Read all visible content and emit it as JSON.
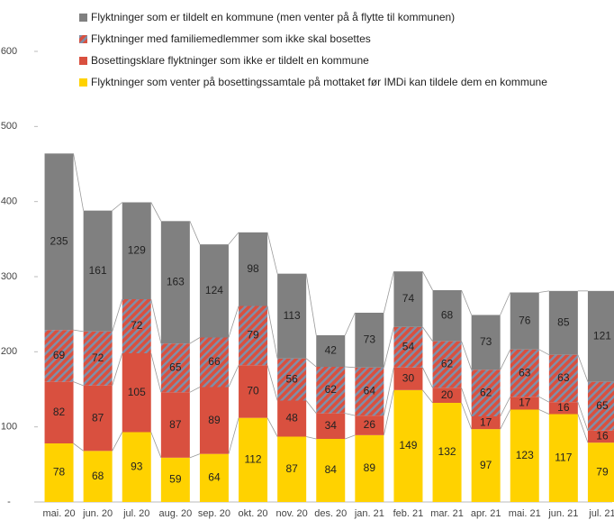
{
  "chart_data": {
    "type": "stacked_bar",
    "categories": [
      "mai. 20",
      "jun. 20",
      "jul. 20",
      "aug. 20",
      "sep. 20",
      "okt. 20",
      "nov. 20",
      "des. 20",
      "jan. 21",
      "feb. 21",
      "mar. 21",
      "apr. 21",
      "mai. 21",
      "jun. 21",
      "jul. 21"
    ],
    "series": [
      {
        "name": "Flyktninger som venter på bosettingssamtale på mottaket før IMDi kan tildele dem en kommune",
        "color": "#ffd200",
        "values": [
          78,
          68,
          93,
          59,
          64,
          112,
          87,
          84,
          89,
          149,
          132,
          97,
          123,
          117,
          79
        ]
      },
      {
        "name": "Bosettingsklare flyktninger som ikke er tildelt en kommune",
        "color": "#d9503f",
        "values": [
          82,
          87,
          105,
          87,
          89,
          70,
          48,
          34,
          26,
          30,
          20,
          17,
          17,
          16,
          16
        ]
      },
      {
        "name": "Flyktninger med familiemedlemmer som ikke skal bosettes",
        "color": "#d9503f",
        "hatch": true,
        "values": [
          69,
          72,
          72,
          65,
          66,
          79,
          56,
          62,
          64,
          54,
          62,
          62,
          63,
          63,
          65
        ]
      },
      {
        "name": "Flyktninger som er tildelt en kommune (men venter på å flytte til kommunen)",
        "color": "#808080",
        "values": [
          235,
          161,
          129,
          163,
          124,
          98,
          113,
          42,
          73,
          74,
          68,
          73,
          76,
          85,
          121
        ]
      }
    ],
    "ylim": [
      0,
      600
    ],
    "yticks": [
      {
        "value": 0,
        "label": "-"
      },
      100,
      200,
      300,
      400,
      500,
      600
    ]
  }
}
